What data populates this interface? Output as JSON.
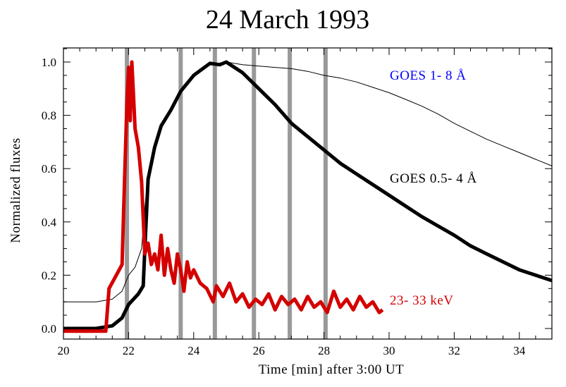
{
  "chart_data": {
    "type": "line",
    "title": "24 March 1993",
    "xlabel": "Time [min] after  3:00 UT",
    "ylabel": "Normalized fluxes",
    "xlim": [
      20,
      35
    ],
    "ylim": [
      -0.01,
      1.06
    ],
    "xticks": [
      20,
      22,
      24,
      26,
      28,
      30,
      32,
      34
    ],
    "xtick_labels": [
      "20",
      "22",
      "24",
      "26",
      "28",
      "30",
      "32",
      "34"
    ],
    "yticks": [
      0.0,
      0.2,
      0.4,
      0.6,
      0.8,
      1.0
    ],
    "ytick_labels": [
      "0.0",
      "0.2",
      "0.4",
      "0.6",
      "0.8",
      "1.0"
    ],
    "grid": false,
    "vertical_markers": [
      21.95,
      23.6,
      24.65,
      25.85,
      26.95,
      28.05
    ],
    "marker_color": "#999999",
    "series": [
      {
        "name": "GOES 1- 8 Å",
        "color": "#000000",
        "label_color": "#0000ff",
        "width": "thin",
        "x": [
          20,
          21,
          21.5,
          21.8,
          22.0,
          22.2,
          22.4,
          22.5,
          22.6,
          22.8,
          23.0,
          23.3,
          23.6,
          24.0,
          24.5,
          25.0,
          25.5,
          26.0,
          26.5,
          27.0,
          27.5,
          28.0,
          28.5,
          29.0,
          29.5,
          30.0,
          30.5,
          31.0,
          31.5,
          32.0,
          32.5,
          33.0,
          33.5,
          34.0,
          34.5,
          35.0
        ],
        "y": [
          0.1,
          0.1,
          0.11,
          0.14,
          0.2,
          0.23,
          0.3,
          0.45,
          0.58,
          0.69,
          0.75,
          0.82,
          0.89,
          0.95,
          0.99,
          1.0,
          0.99,
          0.985,
          0.98,
          0.975,
          0.965,
          0.95,
          0.94,
          0.925,
          0.905,
          0.885,
          0.86,
          0.835,
          0.805,
          0.77,
          0.74,
          0.71,
          0.685,
          0.66,
          0.635,
          0.61
        ]
      },
      {
        "name": "GOES 0.5- 4 Å",
        "color": "#000000",
        "label_color": "#000000",
        "width": "thick",
        "x": [
          20,
          21,
          21.5,
          21.8,
          22.0,
          22.3,
          22.45,
          22.5,
          22.6,
          22.8,
          23.0,
          23.3,
          23.6,
          24.0,
          24.5,
          24.8,
          25.0,
          25.5,
          26.0,
          26.5,
          27.0,
          27.5,
          28.0,
          28.5,
          29.0,
          29.5,
          30.0,
          30.5,
          31.0,
          31.5,
          32.0,
          32.5,
          33.0,
          33.5,
          34.0,
          34.5,
          35.0
        ],
        "y": [
          0.0,
          0.0,
          0.01,
          0.04,
          0.09,
          0.13,
          0.16,
          0.3,
          0.56,
          0.68,
          0.76,
          0.82,
          0.89,
          0.95,
          0.995,
          0.99,
          1.0,
          0.96,
          0.9,
          0.84,
          0.77,
          0.72,
          0.67,
          0.62,
          0.58,
          0.54,
          0.5,
          0.46,
          0.42,
          0.385,
          0.35,
          0.31,
          0.28,
          0.25,
          0.22,
          0.2,
          0.18
        ]
      },
      {
        "name": "23- 33 keV",
        "color": "#d40000",
        "label_color": "#d40000",
        "width": "thick",
        "x": [
          20,
          21.3,
          21.4,
          21.8,
          21.85,
          21.95,
          22.0,
          22.05,
          22.1,
          22.15,
          22.2,
          22.3,
          22.4,
          22.5,
          22.6,
          22.7,
          22.8,
          22.9,
          23.0,
          23.1,
          23.2,
          23.3,
          23.4,
          23.5,
          23.6,
          23.7,
          23.8,
          23.9,
          24.0,
          24.2,
          24.4,
          24.6,
          24.7,
          24.9,
          25.1,
          25.3,
          25.5,
          25.7,
          25.9,
          26.1,
          26.3,
          26.5,
          26.7,
          26.9,
          27.1,
          27.3,
          27.5,
          27.7,
          27.9,
          28.1,
          28.3,
          28.5,
          28.7,
          28.9,
          29.1,
          29.3,
          29.5,
          29.7,
          29.8
        ],
        "y": [
          -0.01,
          -0.01,
          0.15,
          0.24,
          0.45,
          0.85,
          0.98,
          0.78,
          1.0,
          0.88,
          0.75,
          0.68,
          0.55,
          0.28,
          0.32,
          0.24,
          0.28,
          0.22,
          0.35,
          0.2,
          0.3,
          0.22,
          0.17,
          0.28,
          0.22,
          0.14,
          0.25,
          0.19,
          0.22,
          0.17,
          0.15,
          0.1,
          0.16,
          0.12,
          0.17,
          0.1,
          0.13,
          0.08,
          0.11,
          0.09,
          0.13,
          0.07,
          0.12,
          0.09,
          0.11,
          0.07,
          0.12,
          0.08,
          0.1,
          0.06,
          0.14,
          0.08,
          0.11,
          0.07,
          0.12,
          0.08,
          0.1,
          0.06,
          0.07
        ]
      }
    ]
  }
}
